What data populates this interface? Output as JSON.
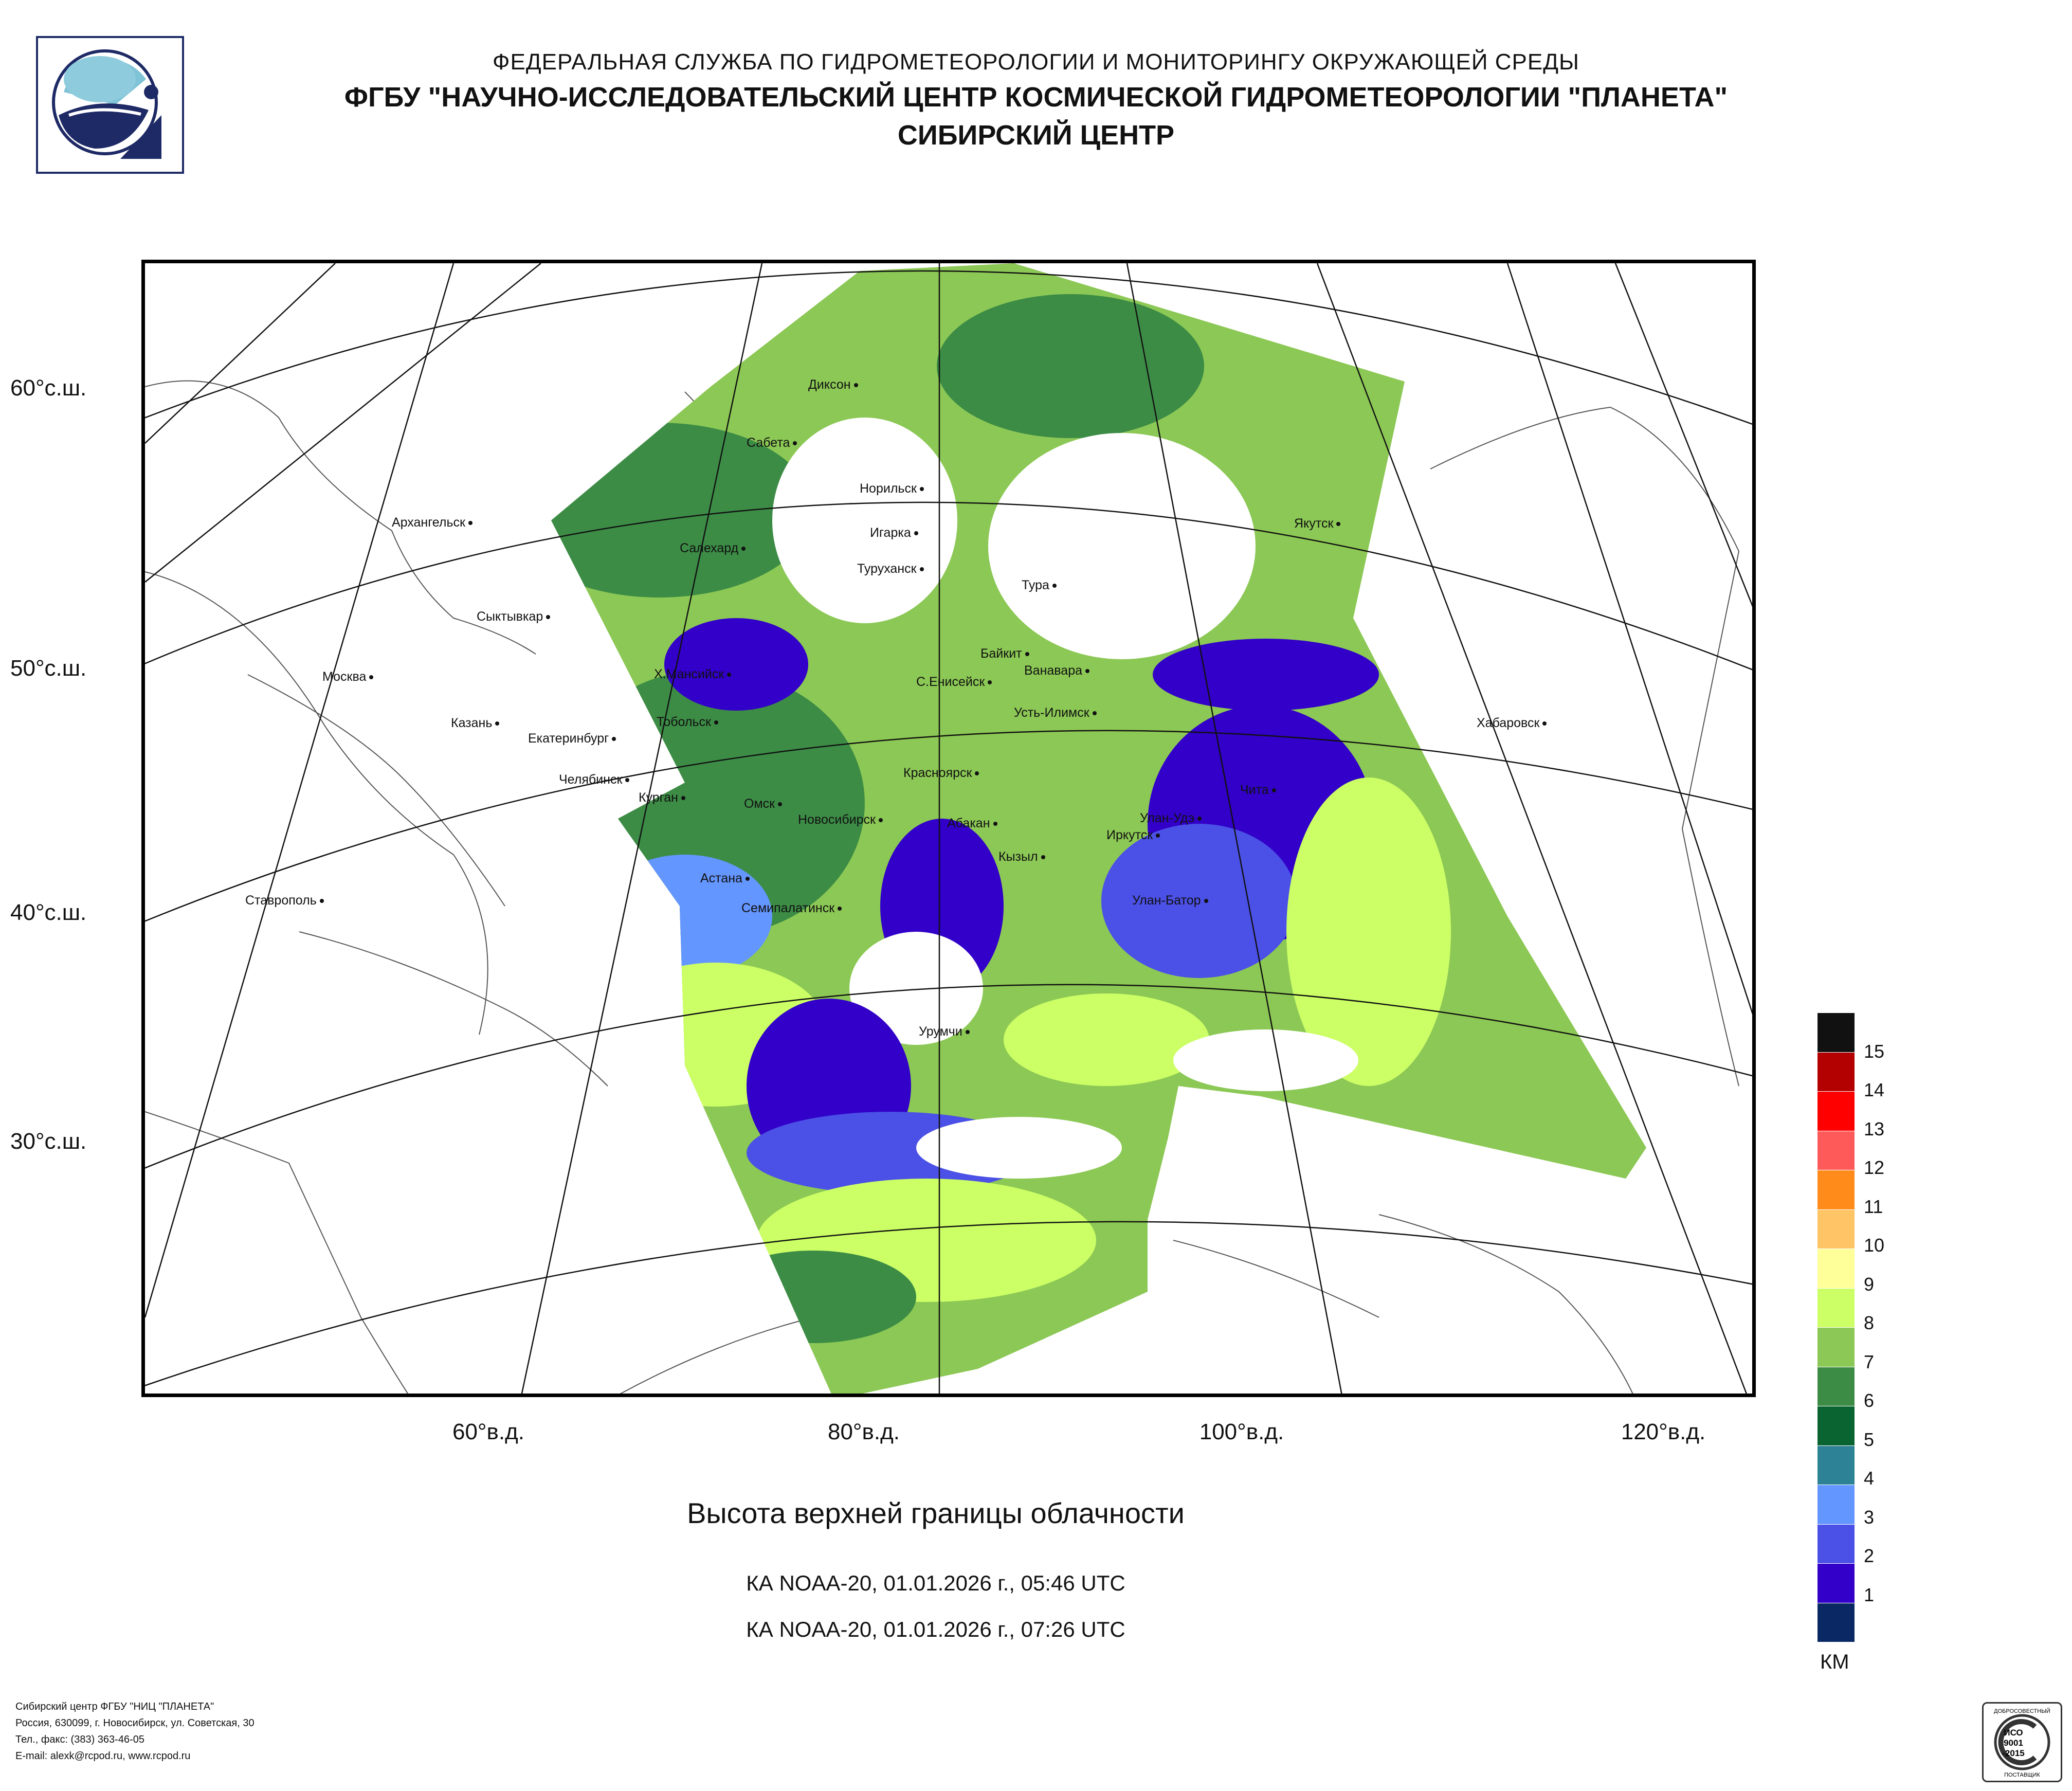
{
  "header": {
    "line1": "ФЕДЕРАЛЬНАЯ СЛУЖБА ПО ГИДРОМЕТЕОРОЛОГИИ И МОНИТОРИНГУ ОКРУЖАЮЩЕЙ СРЕДЫ",
    "line2": "ФГБУ \"НАУЧНО-ИССЛЕДОВАТЕЛЬСКИЙ ЦЕНТР КОСМИЧЕСКОЙ ГИДРОМЕТЕОРОЛОГИИ \"ПЛАНЕТА\"",
    "line3": "СИБИРСКИЙ ЦЕНТР"
  },
  "latitudes": [
    "60°с.ш.",
    "50°с.ш.",
    "40°с.ш.",
    "30°с.ш."
  ],
  "longitudes": [
    "60°в.д.",
    "80°в.д.",
    "100°в.д.",
    "120°в.д."
  ],
  "cities": [
    "Диксон",
    "Сабета",
    "Норильск",
    "Архангельск",
    "Салехард",
    "Игарка",
    "Туруханск",
    "Тура",
    "Якутск",
    "Сыктывкар",
    "Байкит",
    "Ванавара",
    "Москва",
    "Х.Мансийск",
    "С.Енисейск",
    "Усть-Илимск",
    "Казань",
    "Екатеринбург",
    "Тобольск",
    "Хабаровск",
    "Челябинск",
    "Курган",
    "Красноярск",
    "Чита",
    "Омск",
    "Новосибирск",
    "Абакан",
    "Улан-Удэ",
    "Иркутск",
    "Кызыл",
    "Астана",
    "Ставрополь",
    "Улан-Батор",
    "Семипалатинск",
    "Урумчи"
  ],
  "caption": "Высота верхней границы облачности",
  "passes": [
    "КА NOAA-20, 01.01.2026 г., 05:46 UTC",
    "КА NOAA-20, 01.01.2026 г., 07:26 UTC"
  ],
  "legend": {
    "unit": "КМ",
    "levels": [
      "15",
      "14",
      "13",
      "12",
      "11",
      "10",
      "9",
      "8",
      "7",
      "6",
      "5",
      "4",
      "3",
      "2",
      "1"
    ],
    "colors": [
      "#111111",
      "#b30000",
      "#ff0000",
      "#ff5a5a",
      "#ff8c1a",
      "#ffc466",
      "#ffff99",
      "#ccff66",
      "#8cc855",
      "#3c8c46",
      "#0a6432",
      "#2e8296",
      "#6496ff",
      "#4b50e6",
      "#3200c8",
      "#0a2864"
    ]
  },
  "footer": [
    "Сибирский центр ФГБУ \"НИЦ \"ПЛАНЕТА\"",
    "Россия, 630099, г. Новосибирск, ул. Советская, 30",
    "Тел., факс: (383) 363-46-05",
    "E-mail: alexk@rcpod.ru, www.rcpod.ru"
  ],
  "cert": {
    "line1": "ДОБРОСОВЕСТНЫЙ",
    "line2": "ИСО",
    "line3": "9001",
    "line4": "-2015",
    "line5": "ПОСТАВЩИК"
  }
}
